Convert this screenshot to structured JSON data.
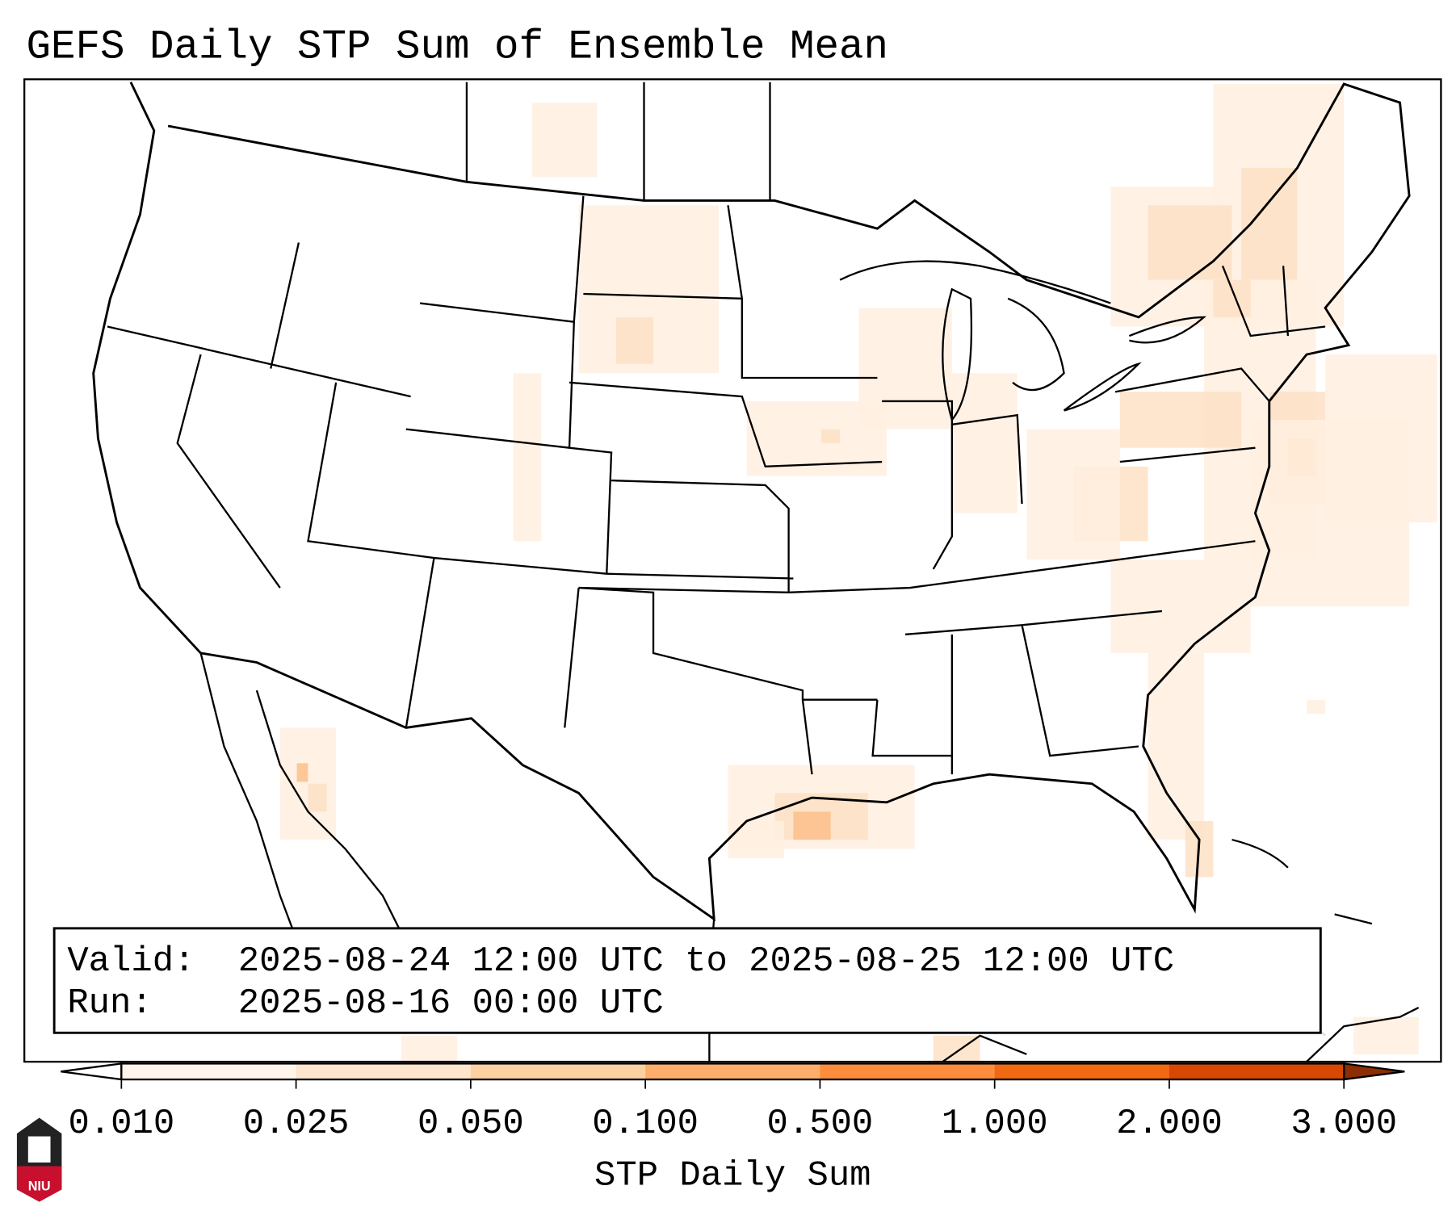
{
  "title": "GEFS Daily STP Sum of Ensemble Mean",
  "info_box": {
    "valid_label": "Valid:",
    "valid_value": "2025-08-24 12:00 UTC to 2025-08-25 12:00 UTC",
    "run_label": "Run:",
    "run_value": "2025-08-16 00:00 UTC"
  },
  "colorbar": {
    "label": "STP Daily Sum",
    "ticks": [
      "0.010",
      "0.025",
      "0.050",
      "0.100",
      "0.500",
      "1.000",
      "2.000",
      "3.000"
    ],
    "colors": [
      "#fff5eb",
      "#fee6ce",
      "#fdd0a2",
      "#fdae6b",
      "#fd8d3c",
      "#f16913",
      "#d94801"
    ],
    "under_color": "#ffffff",
    "over_color": "#8c2d04"
  },
  "logo": {
    "text": "NIU"
  }
}
